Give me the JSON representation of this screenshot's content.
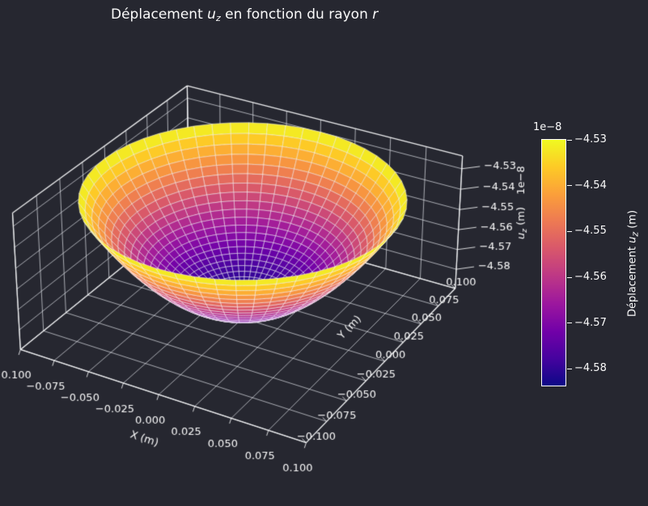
{
  "title": {
    "part1": "Déplacement ",
    "var1": "u",
    "sub1": "z",
    "part2": " en fonction du rayon ",
    "var2": "r"
  },
  "colors": {
    "background": "#262730",
    "text": "#fafafa",
    "grid": "#eceef2",
    "axis_edge": "#f8f9fa",
    "colorbar_border": "#ffffff",
    "surface_edge": "#ffffff"
  },
  "axes": {
    "x": {
      "label": "X (m)",
      "tick_labels": [
        "−0.100",
        "−0.075",
        "−0.050",
        "−0.025",
        "0.000",
        "0.025",
        "0.050",
        "0.075",
        "0.100"
      ],
      "tick_values": [
        -0.1,
        -0.075,
        -0.05,
        -0.025,
        0.0,
        0.025,
        0.05,
        0.075,
        0.1
      ]
    },
    "y": {
      "label": "Y (m)",
      "tick_labels": [
        "−0.100",
        "−0.075",
        "−0.050",
        "−0.025",
        "0.000",
        "0.025",
        "0.050",
        "0.075",
        "0.100"
      ],
      "tick_values": [
        -0.1,
        -0.075,
        -0.05,
        -0.025,
        0.0,
        0.025,
        0.05,
        0.075,
        0.1
      ]
    },
    "z": {
      "label_var": "u",
      "label_sub": "z",
      "label_suffix": " (m)",
      "offset_text": "1e−8",
      "tick_labels": [
        "−4.53",
        "−4.54",
        "−4.55",
        "−4.56",
        "−4.57",
        "−4.58"
      ],
      "tick_values": [
        -4.53,
        -4.54,
        -4.55,
        -4.56,
        -4.57,
        -4.58
      ]
    }
  },
  "colorbar": {
    "offset": "1e−8",
    "tick_labels": [
      "−4.53",
      "−4.54",
      "−4.55",
      "−4.56",
      "−4.57",
      "−4.58"
    ],
    "tick_values": [
      -4.53,
      -4.54,
      -4.55,
      -4.56,
      -4.57,
      -4.58
    ],
    "label": {
      "prefix": "Déplacement ",
      "var": "u",
      "sub": "z",
      "suffix": " (m)"
    },
    "colormap": "plasma",
    "gradient_stops": [
      "#0d0887",
      "#46039f",
      "#7201a8",
      "#9c179e",
      "#bd3786",
      "#d8576b",
      "#ed7953",
      "#fb9f3a",
      "#fdca26",
      "#f0f921"
    ]
  },
  "chart_data": {
    "type": "surface_3d",
    "title": "Déplacement u_z en fonction du rayon r",
    "xlabel": "X (m)",
    "ylabel": "Y (m)",
    "zlabel": "u_z (m)",
    "z_offset_scale": "1e-8",
    "x_range": [
      -0.1,
      0.1
    ],
    "y_range": [
      -0.1,
      0.1
    ],
    "z_axis_range_1e8": [
      -4.5898,
      -4.5238
    ],
    "z_data_range_1e8": [
      -4.5838,
      -4.5298
    ],
    "colormap": "plasma",
    "surface_formula": "u_z(r) = -4.5838e-8 + 0.0540e-8 * (r/0.1)^2  (paraboloid of revolution, r = sqrt(x^2+y^2))",
    "mesh": "polar grid (rings x spokes) with white wireframe edges",
    "radial_profile": {
      "r_m": [
        0.0,
        0.01,
        0.02,
        0.03,
        0.04,
        0.05,
        0.06,
        0.07,
        0.08,
        0.09,
        0.1
      ],
      "u_z_1e8": [
        -4.5838,
        -4.5833,
        -4.5816,
        -4.5789,
        -4.5752,
        -4.5703,
        -4.5644,
        -4.5573,
        -4.5492,
        -4.5401,
        -4.5298
      ]
    },
    "view": {
      "elev_deg": 30,
      "azim_deg": -60,
      "projection": "perspective",
      "grid": true
    },
    "legend_position": "colorbar-right"
  }
}
